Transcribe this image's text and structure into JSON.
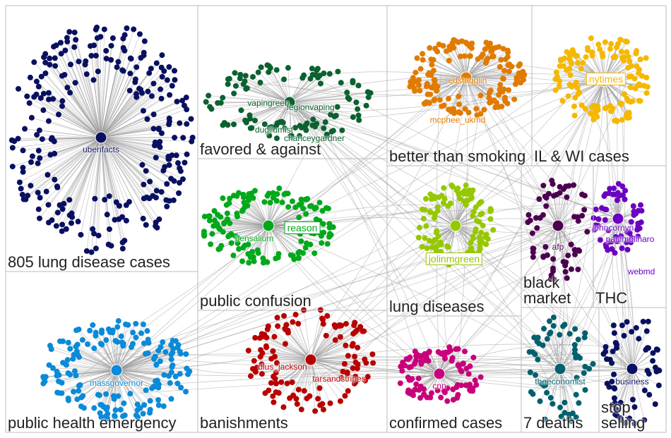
{
  "groups": [
    {
      "label": "805 lung disease cases",
      "nodes": [
        "ubenfacts"
      ]
    },
    {
      "label": "favored & against",
      "nodes": [
        "vapingreen",
        "legionvaping",
        "dugllumist",
        "chanceygardner"
      ]
    },
    {
      "label": "better than smoking",
      "nodes": [
        "edstanglin",
        "mcphee_ukmd"
      ]
    },
    {
      "label": "IL & WI cases",
      "nodes": [
        "nytimes"
      ]
    },
    {
      "label": "public confusion",
      "nodes": [
        "bensalium",
        "reason"
      ]
    },
    {
      "label": "lung diseases",
      "nodes": [
        "jolinmgreen"
      ]
    },
    {
      "label": "black market",
      "nodes": [
        "afp"
      ]
    },
    {
      "label": "THC",
      "nodes": [
        "johncornyn",
        "paulmolinaro",
        "webmd"
      ]
    },
    {
      "label": "public health emergency",
      "nodes": [
        "massgovernor"
      ]
    },
    {
      "label": "banishments",
      "nodes": [
        "dlus_jackson",
        "tarsandstripes"
      ]
    },
    {
      "label": "confirmed cases",
      "nodes": [
        "cnn"
      ]
    },
    {
      "label": "7 deaths",
      "nodes": [
        "theeconomist"
      ]
    },
    {
      "label": "stop selling",
      "nodes": [
        "business"
      ]
    }
  ]
}
